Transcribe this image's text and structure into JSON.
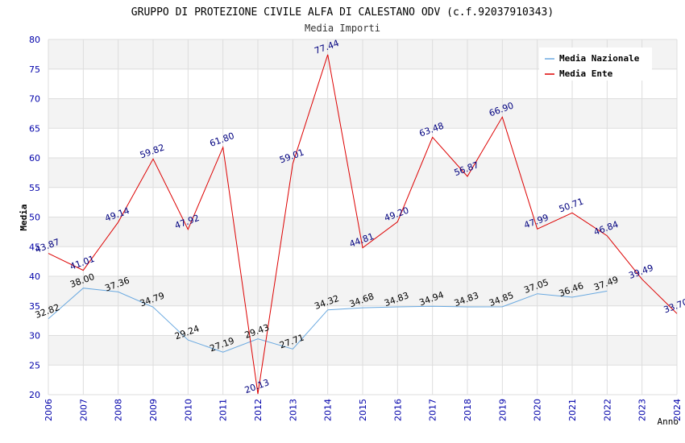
{
  "chart_data": {
    "type": "line",
    "title": "GRUPPO DI PROTEZIONE CIVILE ALFA DI CALESTANO ODV (c.f.92037910343)",
    "subtitle": "Media Importi",
    "xlabel": "Anno",
    "ylabel": "Media",
    "ylim": [
      20,
      80
    ],
    "yticks": [
      20,
      25,
      30,
      35,
      40,
      45,
      50,
      55,
      60,
      65,
      70,
      75,
      80
    ],
    "ytick_labels": [
      "20",
      "25",
      "30",
      "35",
      "40",
      "45",
      "50",
      "55",
      "60",
      "65",
      "70",
      "75",
      "80"
    ],
    "x": [
      "2006",
      "2007",
      "2008",
      "2009",
      "2010",
      "2011",
      "2012",
      "2013",
      "2014",
      "2015",
      "2016",
      "2017",
      "2018",
      "2019",
      "2020",
      "2021",
      "2022",
      "2023",
      "2024"
    ],
    "grid": true,
    "legend_position": "top-right",
    "series": [
      {
        "name": "Media Nazionale",
        "color": "#6aa9e0",
        "label_color": "#000000",
        "values": [
          32.82,
          38.0,
          37.36,
          34.79,
          29.24,
          27.19,
          29.43,
          27.71,
          34.32,
          34.68,
          34.83,
          34.94,
          34.83,
          34.85,
          37.05,
          36.46,
          37.49,
          null,
          null
        ],
        "labels": [
          "32.82",
          "38.00",
          "37.36",
          "34.79",
          "29.24",
          "27.19",
          "29.43",
          "27.71",
          "34.32",
          "34.68",
          "34.83",
          "34.94",
          "34.83",
          "34.85",
          "37.05",
          "36.46",
          "37.49",
          null,
          null
        ]
      },
      {
        "name": "Media Ente",
        "color": "#dd0000",
        "label_color": "#00007f",
        "values": [
          43.87,
          41.01,
          49.14,
          59.82,
          47.92,
          61.8,
          20.13,
          59.01,
          77.44,
          44.81,
          49.2,
          63.48,
          56.87,
          66.9,
          47.99,
          50.71,
          46.84,
          39.49,
          33.7
        ],
        "labels": [
          "43.87",
          "41.01",
          "49.14",
          "59.82",
          "47.92",
          "61.80",
          "20.13",
          "59.01",
          "77.44",
          "44.81",
          "49.20",
          "63.48",
          "56.87",
          "66.90",
          "47.99",
          "50.71",
          "46.84",
          "39.49",
          "33.70"
        ]
      }
    ]
  }
}
